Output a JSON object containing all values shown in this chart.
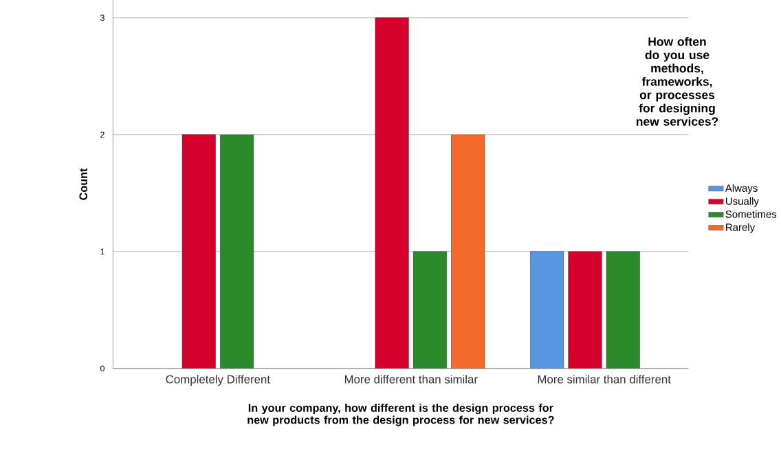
{
  "chart_data": {
    "type": "bar",
    "xlabel": "In your company, how different is the design process for new products from the design process for new services?",
    "ylabel": "Count",
    "legend_title": "How often do you use methods, frameworks, or processes for designing new services?",
    "categories": [
      "Completely Different",
      "More different than similar",
      "More similar than different"
    ],
    "series": [
      {
        "name": "Always",
        "color": "#5597e1",
        "values": [
          null,
          null,
          1
        ]
      },
      {
        "name": "Usually",
        "color": "#d5002c",
        "values": [
          2,
          3,
          1
        ]
      },
      {
        "name": "Sometimes",
        "color": "#2a8a2c",
        "values": [
          2,
          1,
          1
        ]
      },
      {
        "name": "Rarely",
        "color": "#f36a2a",
        "values": [
          null,
          2,
          null
        ]
      }
    ],
    "ylim": [
      0,
      3.15
    ],
    "yticks": [
      0,
      1,
      2,
      3
    ],
    "grid": "y",
    "legend": "right"
  }
}
